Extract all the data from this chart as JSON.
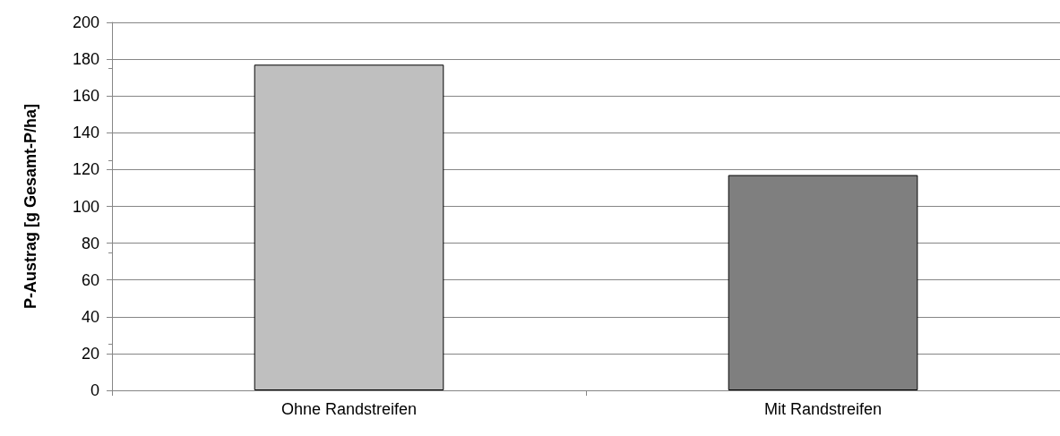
{
  "chart_data": {
    "type": "bar",
    "ylabel": "P-Austrag [g Gesamt-P/ha]",
    "categories": [
      "Ohne Randstreifen",
      "Mit Randstreifen"
    ],
    "values": [
      177,
      117
    ],
    "colors": [
      "#bfbfbf",
      "#7f7f7f"
    ],
    "ylim": [
      0,
      200
    ],
    "yticks": [
      0,
      20,
      40,
      60,
      80,
      100,
      120,
      140,
      160,
      180,
      200
    ],
    "grid": "y"
  }
}
